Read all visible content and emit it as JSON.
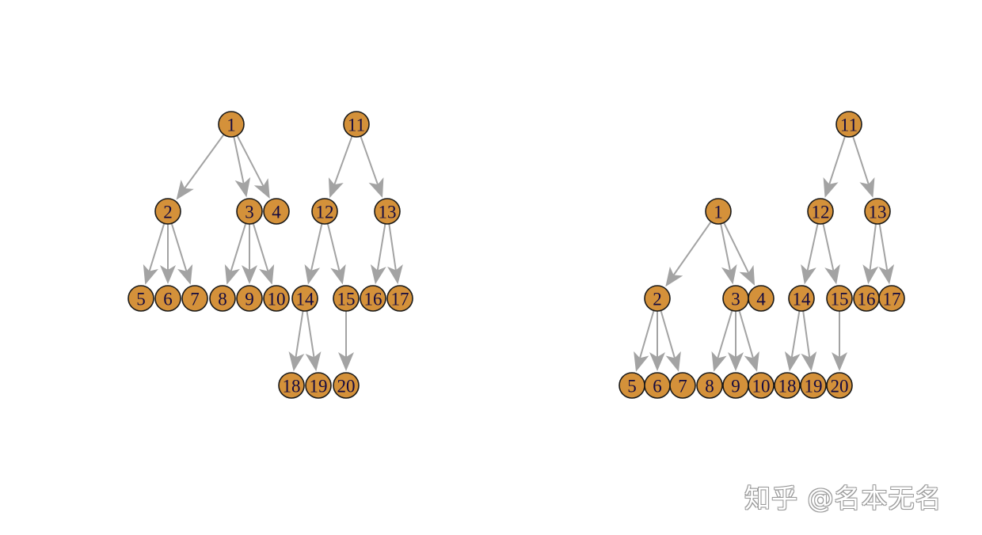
{
  "colors": {
    "node_fill": "#d4913a",
    "node_stroke": "#1a1a1a",
    "label_color": "#140a40",
    "edge_color": "#a3a3a3",
    "background": "#ffffff"
  },
  "watermark": "知乎 @名本无名",
  "graphs": [
    {
      "name": "left-graph",
      "layout": "tree-per-root",
      "nodes": [
        "1",
        "2",
        "3",
        "4",
        "5",
        "6",
        "7",
        "8",
        "9",
        "10",
        "11",
        "12",
        "13",
        "14",
        "15",
        "16",
        "17",
        "18",
        "19",
        "20"
      ],
      "edges": [
        [
          "1",
          "2"
        ],
        [
          "1",
          "3"
        ],
        [
          "1",
          "4"
        ],
        [
          "2",
          "5"
        ],
        [
          "2",
          "6"
        ],
        [
          "2",
          "7"
        ],
        [
          "3",
          "8"
        ],
        [
          "3",
          "9"
        ],
        [
          "3",
          "10"
        ],
        [
          "11",
          "12"
        ],
        [
          "11",
          "13"
        ],
        [
          "12",
          "14"
        ],
        [
          "12",
          "15"
        ],
        [
          "13",
          "16"
        ],
        [
          "13",
          "17"
        ],
        [
          "14",
          "18"
        ],
        [
          "14",
          "19"
        ],
        [
          "15",
          "20"
        ]
      ]
    },
    {
      "name": "right-graph",
      "layout": "tree-by-depth",
      "nodes": [
        "1",
        "2",
        "3",
        "4",
        "5",
        "6",
        "7",
        "8",
        "9",
        "10",
        "11",
        "12",
        "13",
        "14",
        "15",
        "16",
        "17",
        "18",
        "19",
        "20"
      ],
      "edges": [
        [
          "1",
          "2"
        ],
        [
          "1",
          "3"
        ],
        [
          "1",
          "4"
        ],
        [
          "2",
          "5"
        ],
        [
          "2",
          "6"
        ],
        [
          "2",
          "7"
        ],
        [
          "3",
          "8"
        ],
        [
          "3",
          "9"
        ],
        [
          "3",
          "10"
        ],
        [
          "11",
          "12"
        ],
        [
          "11",
          "13"
        ],
        [
          "12",
          "14"
        ],
        [
          "12",
          "15"
        ],
        [
          "13",
          "16"
        ],
        [
          "13",
          "17"
        ],
        [
          "14",
          "18"
        ],
        [
          "14",
          "19"
        ],
        [
          "15",
          "20"
        ]
      ]
    }
  ]
}
